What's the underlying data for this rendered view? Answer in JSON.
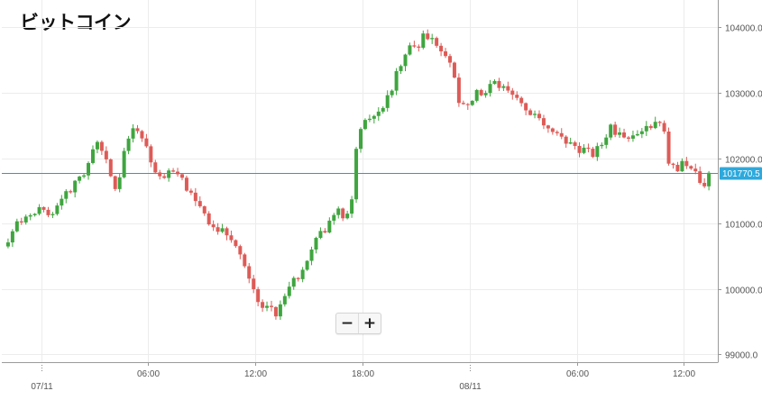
{
  "chart_data": {
    "type": "candlestick",
    "title": "ビットコイン",
    "y_ticks": [
      "104000.0",
      "103000.0",
      "102000.0",
      "101000.0",
      "100000.0",
      "99000.0"
    ],
    "y_tick_values": [
      104000,
      103000,
      102000,
      101000,
      100000,
      99000
    ],
    "ylim": [
      98880,
      104420
    ],
    "x_ticks": [
      {
        "label": "07/11",
        "t": 0,
        "date": true
      },
      {
        "label": "06:00",
        "t": 6
      },
      {
        "label": "12:00",
        "t": 12
      },
      {
        "label": "18:00",
        "t": 18
      },
      {
        "label": "08/11",
        "t": 24,
        "date": true
      },
      {
        "label": "06:00",
        "t": 30
      },
      {
        "label": "12:00",
        "t": 36
      }
    ],
    "current_price": 101770.5,
    "current_price_label": "101770.5",
    "colors": {
      "up": "#3fa53f",
      "down": "#dd5b57",
      "price_line": "#23a2b8",
      "price_tag": "#2da9dc"
    },
    "anchors": [
      [
        -2.1,
        100650
      ],
      [
        -1.3,
        101000
      ],
      [
        -0.2,
        101250
      ],
      [
        0.4,
        101100
      ],
      [
        1.0,
        101300
      ],
      [
        1.9,
        101650
      ],
      [
        2.5,
        101700
      ],
      [
        3.0,
        102300
      ],
      [
        3.4,
        102100
      ],
      [
        3.8,
        101800
      ],
      [
        4.2,
        101550
      ],
      [
        4.6,
        102000
      ],
      [
        5.0,
        102450
      ],
      [
        5.5,
        102350
      ],
      [
        5.9,
        102250
      ],
      [
        6.3,
        101850
      ],
      [
        6.9,
        101750
      ],
      [
        7.4,
        101800
      ],
      [
        8.2,
        101550
      ],
      [
        8.8,
        101250
      ],
      [
        9.6,
        100950
      ],
      [
        10.3,
        100850
      ],
      [
        11.0,
        100700
      ],
      [
        11.6,
        100250
      ],
      [
        11.9,
        99950
      ],
      [
        12.4,
        99650
      ],
      [
        12.8,
        99800
      ],
      [
        13.1,
        99600
      ],
      [
        13.5,
        99750
      ],
      [
        13.9,
        100000
      ],
      [
        14.4,
        100200
      ],
      [
        15.0,
        100550
      ],
      [
        15.5,
        100850
      ],
      [
        16.1,
        100950
      ],
      [
        16.6,
        101300
      ],
      [
        17.1,
        101050
      ],
      [
        17.4,
        101400
      ],
      [
        17.7,
        102300
      ],
      [
        18.0,
        102500
      ],
      [
        18.6,
        102650
      ],
      [
        19.1,
        102800
      ],
      [
        19.5,
        102950
      ],
      [
        20.1,
        103450
      ],
      [
        20.7,
        103800
      ],
      [
        21.1,
        103750
      ],
      [
        21.5,
        103900
      ],
      [
        21.8,
        103850
      ],
      [
        22.2,
        103700
      ],
      [
        22.6,
        103600
      ],
      [
        23.0,
        103400
      ],
      [
        23.4,
        102900
      ],
      [
        23.8,
        102800
      ],
      [
        24.4,
        103050
      ],
      [
        24.8,
        102900
      ],
      [
        25.3,
        103150
      ],
      [
        25.9,
        103050
      ],
      [
        26.3,
        103000
      ],
      [
        26.8,
        102850
      ],
      [
        27.2,
        102700
      ],
      [
        27.7,
        102700
      ],
      [
        28.2,
        102550
      ],
      [
        28.6,
        102400
      ],
      [
        29.0,
        102300
      ],
      [
        29.5,
        102200
      ],
      [
        30.1,
        102150
      ],
      [
        30.5,
        102100
      ],
      [
        30.9,
        102050
      ],
      [
        31.4,
        102200
      ],
      [
        31.9,
        102450
      ],
      [
        32.3,
        102400
      ],
      [
        32.8,
        102300
      ],
      [
        33.3,
        102350
      ],
      [
        33.9,
        102450
      ],
      [
        34.5,
        102550
      ],
      [
        34.8,
        102550
      ],
      [
        35.1,
        102000
      ],
      [
        35.5,
        101850
      ],
      [
        36.0,
        101900
      ],
      [
        36.4,
        101800
      ],
      [
        36.8,
        101700
      ],
      [
        37.1,
        101600
      ],
      [
        37.4,
        101750
      ]
    ]
  }
}
